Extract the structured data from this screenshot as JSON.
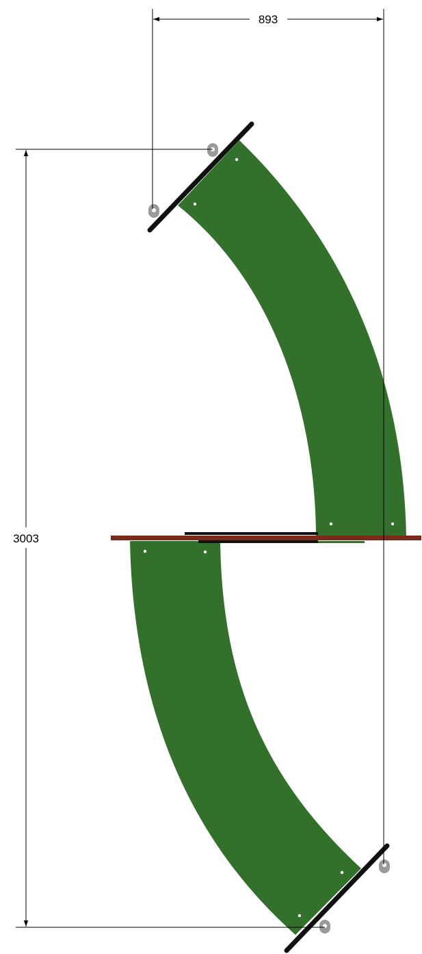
{
  "drawing": {
    "dimensions": {
      "width_value": "893",
      "height_value": "3003"
    },
    "colors": {
      "belt": "#33702c",
      "transfer_plate": "#7a2a18",
      "frame": "#111111",
      "bracket": "#9a9a9a",
      "dimension_line": "#000000"
    }
  }
}
